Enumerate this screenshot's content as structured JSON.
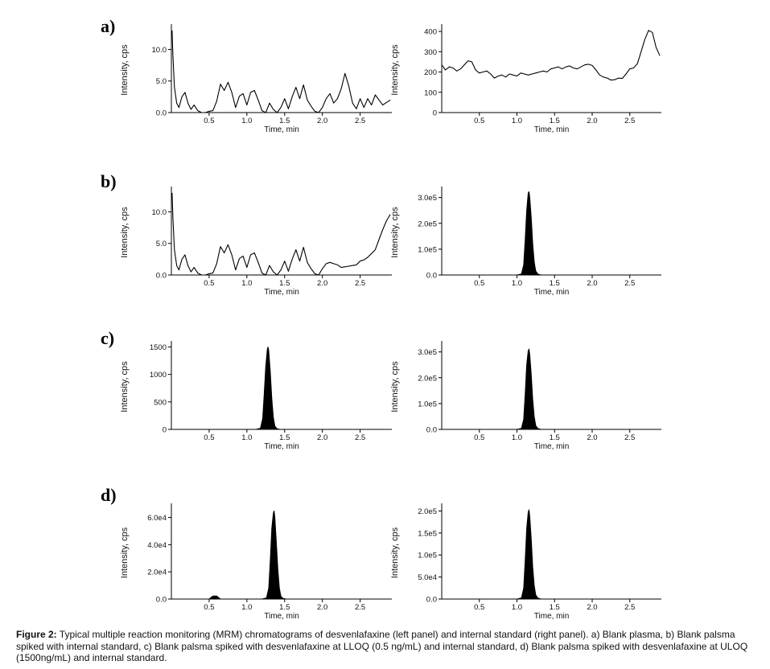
{
  "caption": {
    "label": "Figure 2:",
    "text": "Typical multiple reaction monitoring (MRM) chromatograms of desvenlafaxine (left panel) and internal standard (right panel). a) Blank plasma, b) Blank palsma spiked with internal standard, c) Blank palsma spiked with desvenlafaxine at LLOQ (0.5 ng/mL) and internal standard, d) Blank palsma spiked with desvenlafaxine at ULOQ (1500ng/mL) and internal standard."
  },
  "chart_data": [
    {
      "id": "a-left",
      "row": 0,
      "col": 0,
      "panel_label": "a)",
      "type": "line",
      "title": "",
      "xlabel": "Time, min",
      "ylabel": "Intensity, cps",
      "xlim": [
        0,
        2.92
      ],
      "ylim": [
        0,
        13.5
      ],
      "xticks": [
        0.5,
        1.0,
        1.5,
        2.0,
        2.5
      ],
      "xtick_labels": [
        "0.5",
        "1.0",
        "1.5",
        "2.0",
        "2.5"
      ],
      "yticks": [
        0,
        5,
        10
      ],
      "ytick_labels": [
        "0.0",
        "5.0",
        "10.0"
      ],
      "filled": false,
      "x": [
        0.01,
        0.02,
        0.04,
        0.07,
        0.1,
        0.14,
        0.18,
        0.22,
        0.26,
        0.3,
        0.35,
        0.4,
        0.45,
        0.5,
        0.55,
        0.6,
        0.65,
        0.7,
        0.75,
        0.8,
        0.85,
        0.9,
        0.95,
        1.0,
        1.05,
        1.1,
        1.15,
        1.2,
        1.25,
        1.3,
        1.35,
        1.4,
        1.45,
        1.5,
        1.55,
        1.6,
        1.65,
        1.7,
        1.75,
        1.8,
        1.85,
        1.9,
        1.95,
        2.0,
        2.05,
        2.1,
        2.15,
        2.2,
        2.25,
        2.3,
        2.35,
        2.4,
        2.45,
        2.5,
        2.55,
        2.6,
        2.65,
        2.7,
        2.75,
        2.8,
        2.85,
        2.9
      ],
      "y": [
        13,
        9,
        4,
        1.5,
        0.8,
        2.5,
        3.2,
        1.5,
        0.5,
        1.2,
        0.3,
        0,
        0,
        0.2,
        0.3,
        1.8,
        4.5,
        3.5,
        4.8,
        3.2,
        0.8,
        2.6,
        3.0,
        1.2,
        3.2,
        3.5,
        2.0,
        0.3,
        0,
        1.5,
        0.5,
        0,
        0.8,
        2.2,
        0.6,
        2.5,
        4.0,
        2.2,
        4.4,
        2.0,
        1.0,
        0.2,
        0,
        0.8,
        2.2,
        3.0,
        1.5,
        2.2,
        3.8,
        6.2,
        4.2,
        1.5,
        0.6,
        2.2,
        0.8,
        2.2,
        1.2,
        2.8,
        2.0,
        1.2,
        1.6,
        2.0
      ]
    },
    {
      "id": "a-right",
      "row": 0,
      "col": 1,
      "type": "line",
      "title": "",
      "xlabel": "Time, min",
      "ylabel": "Intensity, cps",
      "xlim": [
        0,
        2.92
      ],
      "ylim": [
        0,
        420
      ],
      "xticks": [
        0.5,
        1.0,
        1.5,
        2.0,
        2.5
      ],
      "xtick_labels": [
        "0.5",
        "1.0",
        "1.5",
        "2.0",
        "2.5"
      ],
      "yticks": [
        0,
        100,
        200,
        300,
        400
      ],
      "ytick_labels": [
        "0",
        "100",
        "200",
        "300",
        "400"
      ],
      "filled": false,
      "x": [
        0.0,
        0.05,
        0.1,
        0.15,
        0.2,
        0.25,
        0.3,
        0.35,
        0.4,
        0.45,
        0.5,
        0.55,
        0.6,
        0.65,
        0.7,
        0.75,
        0.8,
        0.85,
        0.9,
        0.95,
        1.0,
        1.05,
        1.1,
        1.15,
        1.2,
        1.25,
        1.3,
        1.35,
        1.4,
        1.45,
        1.5,
        1.55,
        1.6,
        1.65,
        1.7,
        1.75,
        1.8,
        1.85,
        1.9,
        1.95,
        2.0,
        2.05,
        2.1,
        2.15,
        2.2,
        2.25,
        2.3,
        2.35,
        2.4,
        2.45,
        2.5,
        2.55,
        2.6,
        2.65,
        2.7,
        2.75,
        2.8,
        2.85,
        2.9
      ],
      "y": [
        235,
        210,
        225,
        220,
        205,
        215,
        235,
        255,
        250,
        210,
        195,
        200,
        205,
        190,
        170,
        180,
        185,
        175,
        190,
        185,
        180,
        195,
        190,
        185,
        190,
        195,
        200,
        205,
        200,
        215,
        220,
        225,
        215,
        225,
        230,
        220,
        215,
        225,
        235,
        238,
        232,
        210,
        185,
        175,
        170,
        160,
        162,
        170,
        168,
        190,
        215,
        220,
        240,
        300,
        360,
        405,
        395,
        320,
        280
      ]
    },
    {
      "id": "b-left",
      "row": 1,
      "col": 0,
      "panel_label": "b)",
      "type": "line",
      "title": "",
      "xlabel": "Time, min",
      "ylabel": "Intensity, cps",
      "xlim": [
        0,
        2.92
      ],
      "ylim": [
        0,
        13.5
      ],
      "xticks": [
        0.5,
        1.0,
        1.5,
        2.0,
        2.5
      ],
      "xtick_labels": [
        "0.5",
        "1.0",
        "1.5",
        "2.0",
        "2.5"
      ],
      "yticks": [
        0,
        5,
        10
      ],
      "ytick_labels": [
        "0.0",
        "5.0",
        "10.0"
      ],
      "filled": false,
      "x": [
        0.01,
        0.02,
        0.04,
        0.07,
        0.1,
        0.14,
        0.18,
        0.22,
        0.26,
        0.3,
        0.35,
        0.4,
        0.45,
        0.5,
        0.55,
        0.6,
        0.65,
        0.7,
        0.75,
        0.8,
        0.85,
        0.9,
        0.95,
        1.0,
        1.05,
        1.1,
        1.15,
        1.2,
        1.25,
        1.3,
        1.35,
        1.4,
        1.45,
        1.5,
        1.55,
        1.6,
        1.65,
        1.7,
        1.75,
        1.8,
        1.85,
        1.9,
        1.95,
        2.0,
        2.05,
        2.1,
        2.15,
        2.2,
        2.25,
        2.3,
        2.35,
        2.4,
        2.45,
        2.5,
        2.55,
        2.6,
        2.65,
        2.7,
        2.75,
        2.8,
        2.85,
        2.9
      ],
      "y": [
        13,
        9,
        4,
        1.5,
        0.8,
        2.5,
        3.2,
        1.5,
        0.5,
        1.2,
        0.3,
        0,
        0,
        0.2,
        0.3,
        1.8,
        4.5,
        3.5,
        4.8,
        3.2,
        0.8,
        2.6,
        3.0,
        1.2,
        3.2,
        3.5,
        2.0,
        0.3,
        0,
        1.5,
        0.5,
        0,
        0.8,
        2.2,
        0.6,
        2.5,
        4.0,
        2.2,
        4.4,
        2.0,
        1.0,
        0.2,
        0,
        1.0,
        1.8,
        2.0,
        1.8,
        1.6,
        1.2,
        1.3,
        1.4,
        1.5,
        1.6,
        2.2,
        2.4,
        2.8,
        3.4,
        4.0,
        5.6,
        7.2,
        8.6,
        9.6
      ]
    },
    {
      "id": "b-right",
      "row": 1,
      "col": 1,
      "type": "area",
      "title": "",
      "xlabel": "Time, min",
      "ylabel": "Intensity, cps",
      "xlim": [
        0,
        2.92
      ],
      "ylim": [
        0,
        330000
      ],
      "xticks": [
        0.5,
        1.0,
        1.5,
        2.0,
        2.5
      ],
      "xtick_labels": [
        "0.5",
        "1.0",
        "1.5",
        "2.0",
        "2.5"
      ],
      "yticks": [
        0,
        100000,
        200000,
        300000
      ],
      "ytick_labels": [
        "0.0",
        "1.0e5",
        "2.0e5",
        "3.0e5"
      ],
      "filled": true,
      "x": [
        1.0,
        1.06,
        1.09,
        1.11,
        1.13,
        1.15,
        1.16,
        1.17,
        1.19,
        1.21,
        1.23,
        1.25,
        1.28,
        1.32
      ],
      "y": [
        0,
        4000,
        40000,
        140000,
        250000,
        318000,
        322000,
        300000,
        220000,
        120000,
        50000,
        15000,
        3000,
        0
      ]
    },
    {
      "id": "c-left",
      "row": 2,
      "col": 0,
      "panel_label": "c)",
      "type": "area",
      "title": "",
      "xlabel": "Time, min",
      "ylabel": "Intensity, cps",
      "xlim": [
        0,
        2.92
      ],
      "ylim": [
        0,
        1550
      ],
      "xticks": [
        0.5,
        1.0,
        1.5,
        2.0,
        2.5
      ],
      "xtick_labels": [
        "0.5",
        "1.0",
        "1.5",
        "2.0",
        "2.5"
      ],
      "yticks": [
        0,
        500,
        1000,
        1500
      ],
      "ytick_labels": [
        "0",
        "500",
        "1000",
        "1500"
      ],
      "filled": true,
      "x": [
        1.12,
        1.18,
        1.21,
        1.23,
        1.25,
        1.27,
        1.28,
        1.29,
        1.31,
        1.33,
        1.35,
        1.37,
        1.4,
        1.44
      ],
      "y": [
        0,
        20,
        200,
        650,
        1150,
        1450,
        1500,
        1430,
        1050,
        560,
        220,
        60,
        10,
        0
      ]
    },
    {
      "id": "c-right",
      "row": 2,
      "col": 1,
      "type": "area",
      "title": "",
      "xlabel": "Time, min",
      "ylabel": "Intensity, cps",
      "xlim": [
        0,
        2.92
      ],
      "ylim": [
        0,
        330000
      ],
      "xticks": [
        0.5,
        1.0,
        1.5,
        2.0,
        2.5
      ],
      "xtick_labels": [
        "0.5",
        "1.0",
        "1.5",
        "2.0",
        "2.5"
      ],
      "yticks": [
        0,
        100000,
        200000,
        300000
      ],
      "ytick_labels": [
        "0.0",
        "1.0e5",
        "2.0e5",
        "3.0e5"
      ],
      "filled": true,
      "x": [
        1.0,
        1.06,
        1.09,
        1.11,
        1.13,
        1.15,
        1.16,
        1.17,
        1.19,
        1.21,
        1.23,
        1.25,
        1.28,
        1.32
      ],
      "y": [
        0,
        4000,
        40000,
        140000,
        250000,
        305000,
        310000,
        290000,
        210000,
        115000,
        48000,
        14000,
        3000,
        0
      ]
    },
    {
      "id": "d-left",
      "row": 3,
      "col": 0,
      "panel_label": "d)",
      "type": "area",
      "title": "",
      "xlabel": "Time, min",
      "ylabel": "Intensity, cps",
      "xlim": [
        0,
        2.92
      ],
      "ylim": [
        0,
        68000
      ],
      "xticks": [
        0.5,
        1.0,
        1.5,
        2.0,
        2.5
      ],
      "xtick_labels": [
        "0.5",
        "1.0",
        "1.5",
        "2.0",
        "2.5"
      ],
      "yticks": [
        0,
        20000,
        40000,
        60000
      ],
      "ytick_labels": [
        "0.0",
        "2.0e4",
        "4.0e4",
        "6.0e4"
      ],
      "filled": true,
      "x": [
        0.5,
        0.55,
        0.6,
        0.65,
        1.2,
        1.26,
        1.29,
        1.31,
        1.33,
        1.35,
        1.36,
        1.37,
        1.39,
        1.41,
        1.43,
        1.45,
        1.48,
        1.52,
        1.55
      ],
      "y": [
        0,
        2200,
        2200,
        0,
        0,
        800,
        8000,
        28000,
        52000,
        63000,
        65000,
        60000,
        42000,
        22000,
        8000,
        2000,
        400,
        0,
        0
      ]
    },
    {
      "id": "d-right",
      "row": 3,
      "col": 1,
      "type": "area",
      "title": "",
      "xlabel": "Time, min",
      "ylabel": "Intensity, cps",
      "xlim": [
        0,
        2.92
      ],
      "ylim": [
        0,
        210000
      ],
      "xticks": [
        0.5,
        1.0,
        1.5,
        2.0,
        2.5
      ],
      "xtick_labels": [
        "0.5",
        "1.0",
        "1.5",
        "2.0",
        "2.5"
      ],
      "yticks": [
        0,
        50000,
        100000,
        150000,
        200000
      ],
      "ytick_labels": [
        "0.0",
        "5.0e4",
        "1.0e5",
        "1.5e5",
        "2.0e5"
      ],
      "filled": true,
      "x": [
        1.0,
        1.06,
        1.09,
        1.11,
        1.13,
        1.15,
        1.16,
        1.17,
        1.19,
        1.21,
        1.23,
        1.25,
        1.28,
        1.32
      ],
      "y": [
        0,
        2500,
        25000,
        90000,
        160000,
        198000,
        202000,
        188000,
        135000,
        72000,
        30000,
        9000,
        2000,
        0
      ]
    }
  ]
}
